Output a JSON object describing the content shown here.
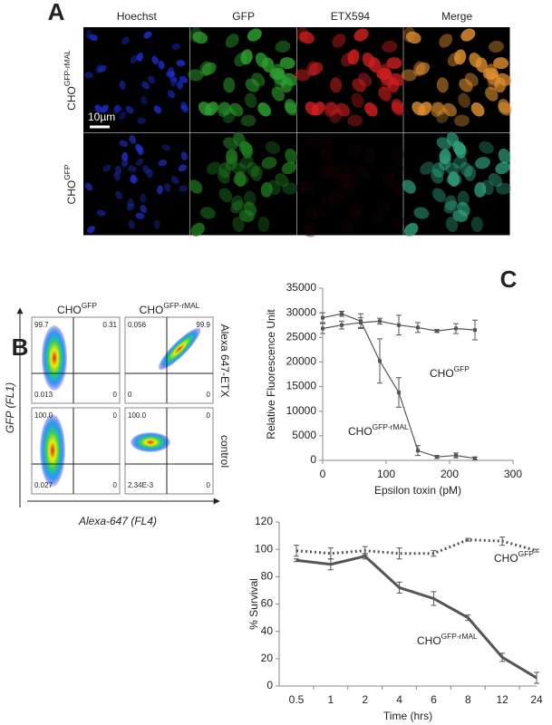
{
  "panel_a": {
    "label": "A",
    "columns": [
      "Hoechst",
      "GFP",
      "ETX594",
      "Merge"
    ],
    "rows": [
      {
        "base": "CHO",
        "sup": "GFP-rMAL"
      },
      {
        "base": "CHO",
        "sup": "GFP"
      }
    ],
    "scale_bar": "10µm"
  },
  "panel_b": {
    "label": "B",
    "columns": [
      {
        "base": "CHO",
        "sup": "GFP"
      },
      {
        "base": "CHO",
        "sup": "GFP-rMAL"
      }
    ],
    "rows": [
      "Alexa 647-ETX",
      "control"
    ],
    "y_label": "GFP (FL1)",
    "x_label": "Alexa-647 (FL4)",
    "quadrants": [
      [
        "99.7",
        "0.31",
        "0.013",
        "0"
      ],
      [
        "0.056",
        "99.9",
        "0",
        "0"
      ],
      [
        "100.0",
        "0",
        "0.027",
        "0"
      ],
      [
        "100.0",
        "0",
        "2.34E-3",
        "0"
      ]
    ]
  },
  "panel_c_label": "C",
  "chart_data": [
    {
      "type": "line",
      "y_label": "Relative Fluorescence Unit",
      "x_label": "Epsilon toxin (pM)",
      "x": [
        0,
        30,
        60,
        90,
        120,
        150,
        180,
        210,
        240
      ],
      "xlim": [
        0,
        300
      ],
      "xticks": [
        0,
        100,
        200,
        300
      ],
      "ylim": [
        0,
        35000
      ],
      "yticks": [
        0,
        5000,
        10000,
        15000,
        20000,
        25000,
        30000,
        35000
      ],
      "series": [
        {
          "label": {
            "base": "CHO",
            "sup": "GFP"
          },
          "color": "#555555",
          "line_style": "solid",
          "values": [
            26800,
            27500,
            28000,
            28300,
            27500,
            27000,
            26300,
            26800,
            26500
          ],
          "errors": [
            1000,
            800,
            1000,
            600,
            2000,
            1000,
            300,
            1000,
            2000
          ]
        },
        {
          "label": {
            "base": "CHO",
            "sup": "GFP-rMAL"
          },
          "color": "#555555",
          "line_style": "solid",
          "values": [
            29000,
            29800,
            28300,
            20200,
            13800,
            2000,
            700,
            1000,
            400
          ],
          "errors": [
            1000,
            500,
            1500,
            4500,
            3000,
            1000,
            300,
            500,
            300
          ]
        }
      ]
    },
    {
      "type": "line",
      "y_label": "% Survival",
      "x_label": "Time (hrs)",
      "categories": [
        "0.5",
        "1",
        "2",
        "4",
        "6",
        "8",
        "12",
        "24"
      ],
      "ylim": [
        0,
        120
      ],
      "yticks": [
        0,
        20,
        40,
        60,
        80,
        100,
        120
      ],
      "series": [
        {
          "label": {
            "base": "CHO",
            "sup": "GFP"
          },
          "color": "#555555",
          "line_style": "dotted",
          "values": [
            99,
            97,
            99,
            97,
            97,
            107,
            106,
            99
          ],
          "errors": [
            4,
            4,
            3,
            4,
            2,
            1,
            3,
            1
          ]
        },
        {
          "label": {
            "base": "CHO",
            "sup": "GFP-rMAL"
          },
          "color": "#555555",
          "line_style": "solid",
          "values": [
            92,
            89,
            95,
            72,
            64,
            50,
            21,
            6
          ],
          "errors": [
            1,
            4,
            2,
            4,
            5,
            2,
            3,
            4
          ]
        }
      ]
    }
  ]
}
